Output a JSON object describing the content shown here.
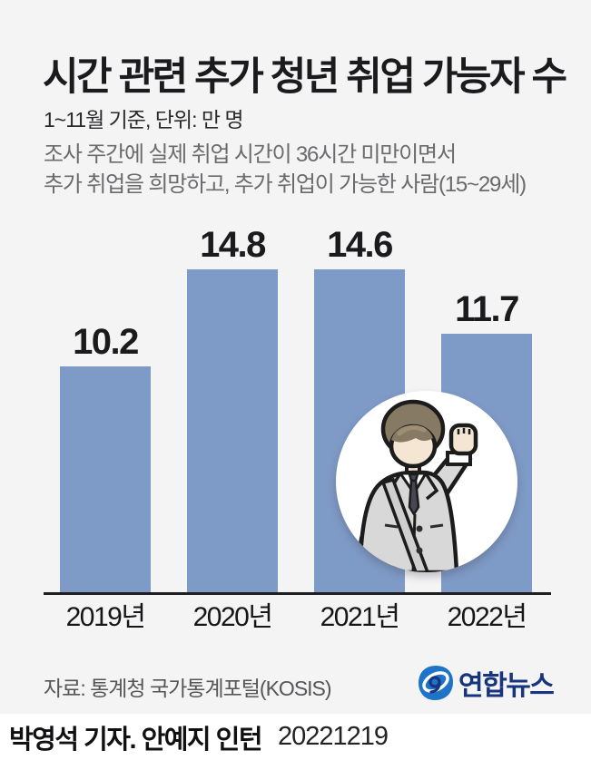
{
  "header": {
    "title": "시간 관련 추가 청년 취업 가능자 수",
    "subtitle": "1~11월 기준, 단위: 만 명",
    "description_line1": "조사 주간에 실제 취업 시간이 36시간 미만이면서",
    "description_line2": "추가 취업을 희망하고, 추가 취업이 가능한 사람(15~29세)"
  },
  "chart_data": {
    "type": "bar",
    "title": "시간 관련 추가 청년 취업 가능자 수",
    "categories": [
      "2019년",
      "2020년",
      "2021년",
      "2022년"
    ],
    "values": [
      10.2,
      14.8,
      14.6,
      11.7
    ],
    "unit": "만 명",
    "xlabel": "",
    "ylabel": "",
    "ylim": [
      0,
      16.6
    ],
    "grid": false,
    "legend": "none",
    "bar_color": "#7e9ac6",
    "axis_color": "#1f1f21",
    "value_labels_shown": true
  },
  "illustration": {
    "name": "young-person-in-gray-suit-raising-fist"
  },
  "source": {
    "label": "자료: 통계청 국가통계포털(KOSIS)",
    "brand": "연합뉴스",
    "brand_text_color": "#17357e",
    "brand_icon_color": "#1e74c6"
  },
  "footer": {
    "credit": "박영석 기자. 안예지 인턴",
    "date": "20221219"
  },
  "colors": {
    "background": "#f4f4f5",
    "footer_background": "#ffffff",
    "title_color": "#1b1b1d",
    "description_color": "#6b6b6d"
  }
}
